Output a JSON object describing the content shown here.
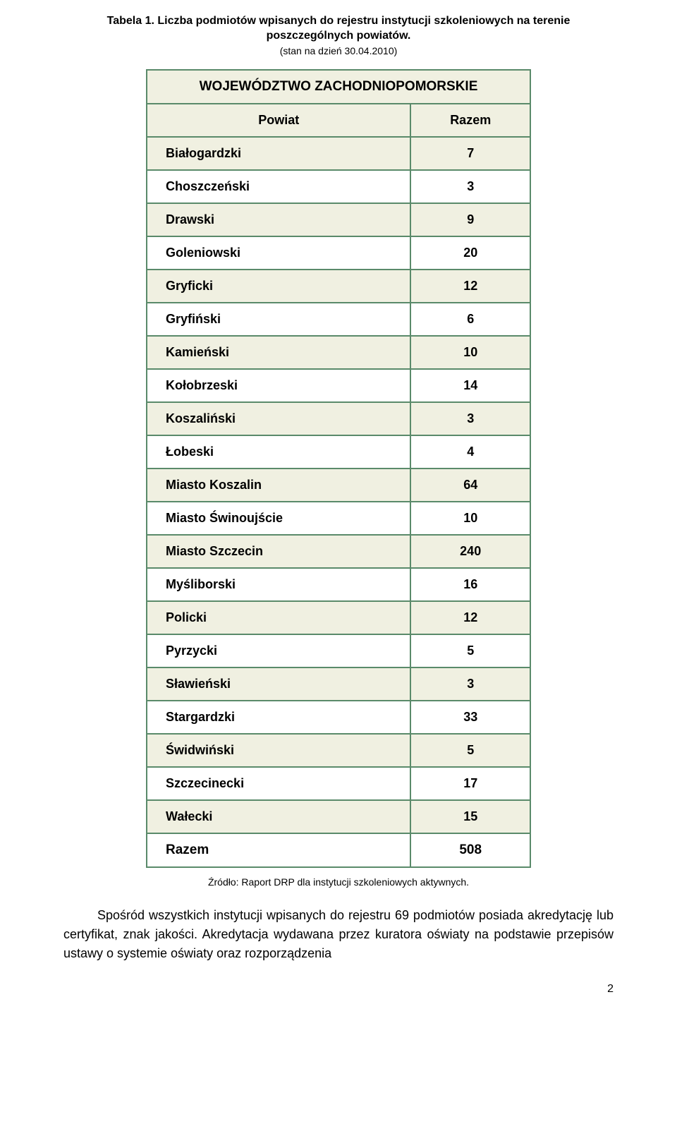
{
  "caption": {
    "line1": "Tabela 1. Liczba podmiotów wpisanych do rejestru instytucji szkoleniowych na terenie poszczególnych powiatów.",
    "line2": "(stan na dzień 30.04.2010)"
  },
  "table": {
    "title": "WOJEWÓDZTWO ZACHODNIOPOMORSKIE",
    "header": {
      "col1": "Powiat",
      "col2": "Razem"
    },
    "rows": [
      {
        "name": "Białogardzki",
        "value": "7"
      },
      {
        "name": "Choszczeński",
        "value": "3"
      },
      {
        "name": "Drawski",
        "value": "9"
      },
      {
        "name": "Goleniowski",
        "value": "20"
      },
      {
        "name": "Gryficki",
        "value": "12"
      },
      {
        "name": "Gryfiński",
        "value": "6"
      },
      {
        "name": "Kamieński",
        "value": "10"
      },
      {
        "name": "Kołobrzeski",
        "value": "14"
      },
      {
        "name": "Koszaliński",
        "value": "3"
      },
      {
        "name": "Łobeski",
        "value": "4"
      },
      {
        "name": "Miasto Koszalin",
        "value": "64"
      },
      {
        "name": "Miasto Świnoujście",
        "value": "10"
      },
      {
        "name": "Miasto Szczecin",
        "value": "240"
      },
      {
        "name": "Myśliborski",
        "value": "16"
      },
      {
        "name": "Policki",
        "value": "12"
      },
      {
        "name": "Pyrzycki",
        "value": "5"
      },
      {
        "name": "Sławieński",
        "value": "3"
      },
      {
        "name": "Stargardzki",
        "value": "33"
      },
      {
        "name": "Świdwiński",
        "value": "5"
      },
      {
        "name": "Szczecinecki",
        "value": "17"
      },
      {
        "name": "Wałecki",
        "value": "15"
      }
    ],
    "total": {
      "label": "Razem",
      "value": "508"
    },
    "border_color": "#5a8a6a",
    "row_bg_odd": "#f0f0e1",
    "row_bg_even": "#ffffff"
  },
  "source": "Źródło: Raport DRP dla instytucji szkoleniowych aktywnych.",
  "paragraph": "Spośród wszystkich instytucji wpisanych do rejestru 69 podmiotów posiada akredytację lub certyfikat, znak jakości. Akredytacja wydawana przez kuratora oświaty na podstawie przepisów ustawy o systemie oświaty oraz rozporządzenia",
  "pagenum": "2"
}
